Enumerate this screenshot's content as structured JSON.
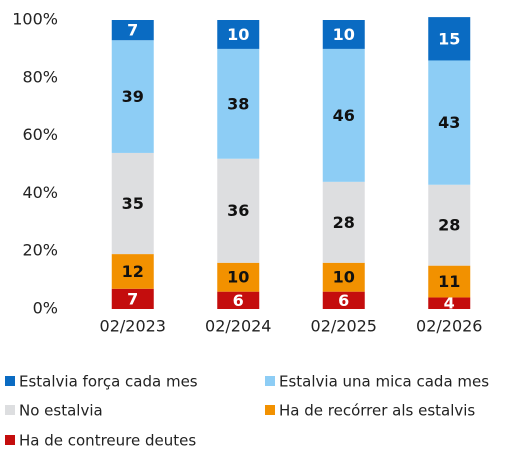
{
  "chart_data": {
    "type": "stacked_bar",
    "categories": [
      "02/2023",
      "02/2024",
      "02/2025",
      "02/2026"
    ],
    "series": [
      {
        "name": "Estalvia força cada mes",
        "color": "#0a6bc2",
        "values": [
          7,
          10,
          10,
          15
        ]
      },
      {
        "name": "Estalvia una mica cada mes",
        "color": "#8dcdf5",
        "values": [
          39,
          38,
          46,
          43
        ]
      },
      {
        "name": "No estalvia",
        "color": "#dddee0",
        "values": [
          35,
          36,
          28,
          28
        ]
      },
      {
        "name": "Ha de recórrer als estalvis",
        "color": "#f29100",
        "values": [
          12,
          10,
          10,
          11
        ]
      },
      {
        "name": "Ha de contreure deutes",
        "color": "#c40d0d",
        "values": [
          7,
          6,
          6,
          4
        ]
      }
    ],
    "ylim": [
      0,
      100
    ],
    "yticks": [
      {
        "value": 0,
        "label": "0%"
      },
      {
        "value": 20,
        "label": "20%"
      },
      {
        "value": 40,
        "label": "40%"
      },
      {
        "value": 60,
        "label": "60%"
      },
      {
        "value": 80,
        "label": "80%"
      },
      {
        "value": 100,
        "label": "100%"
      }
    ],
    "grid": false
  }
}
